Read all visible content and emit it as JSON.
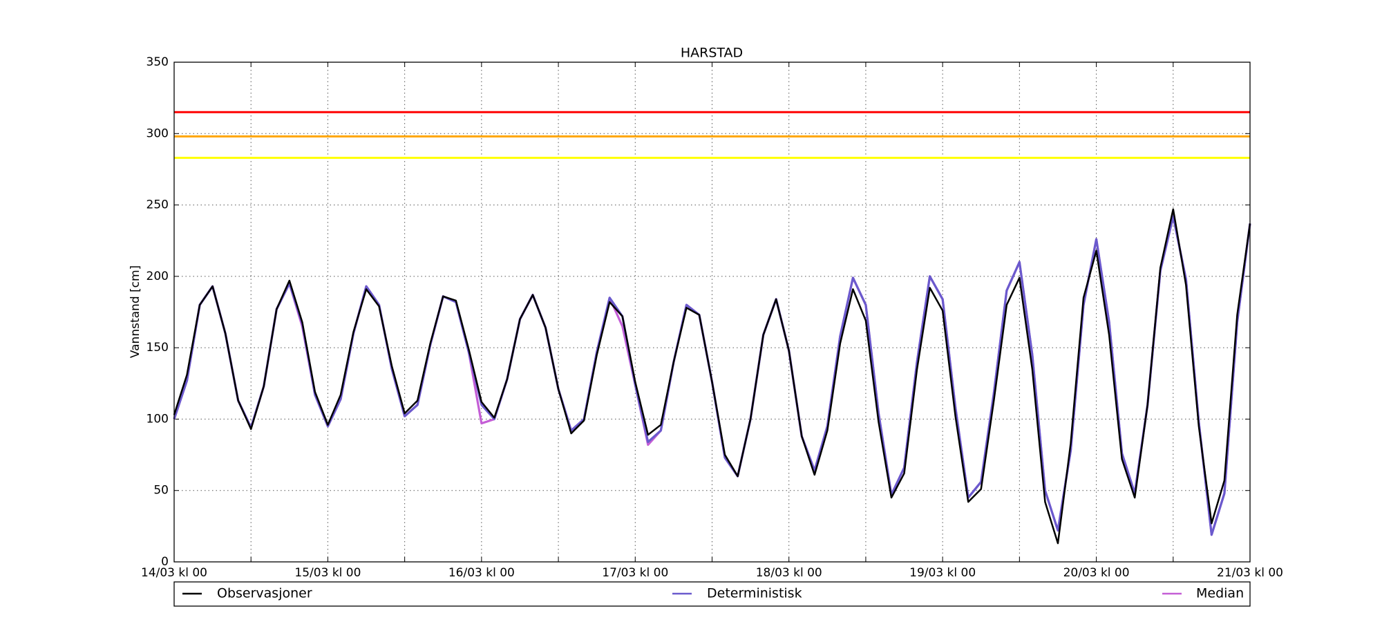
{
  "chart_data": {
    "type": "line",
    "title": "HARSTAD",
    "y_label": "Vannstand [cm]",
    "x": [
      0,
      2,
      4,
      6,
      8,
      10,
      12,
      14,
      16,
      18,
      20,
      22,
      24,
      26,
      28,
      30,
      32,
      34,
      36,
      38,
      40,
      42,
      44,
      46,
      48,
      50,
      52,
      54,
      56,
      58,
      60,
      62,
      64,
      66,
      68,
      70,
      72,
      74,
      76,
      78,
      80,
      82,
      84,
      86,
      88,
      90,
      92,
      94,
      96,
      98,
      100,
      102,
      104,
      106,
      108,
      110,
      112,
      114,
      116,
      118,
      120,
      122,
      124,
      126,
      128,
      130,
      132,
      134,
      136,
      138,
      140,
      142,
      144,
      146,
      148,
      150,
      152,
      154,
      156,
      158,
      160,
      162,
      164,
      166,
      168
    ],
    "series": [
      {
        "name": "Observasjoner",
        "color": "#000000",
        "values": [
          103,
          131,
          180,
          193,
          160,
          113,
          93,
          123,
          177,
          197,
          168,
          119,
          96,
          117,
          161,
          191,
          179,
          137,
          104,
          113,
          153,
          186,
          183,
          149,
          112,
          101,
          128,
          170,
          187,
          164,
          121,
          90,
          99,
          145,
          182,
          172,
          126,
          89,
          96,
          140,
          178,
          173,
          126,
          75,
          60,
          100,
          159,
          184,
          148,
          88,
          61,
          92,
          153,
          191,
          169,
          98,
          45,
          62,
          135,
          192,
          176,
          102,
          42,
          51,
          113,
          180,
          199,
          135,
          42,
          13,
          83,
          185,
          218,
          159,
          72,
          45,
          110,
          206,
          247,
          194,
          95,
          27,
          57,
          173,
          237
        ]
      },
      {
        "name": "Deterministisk",
        "color": "#6a5acd",
        "values": [
          100,
          127,
          180,
          193,
          160,
          113,
          94,
          123,
          177,
          195,
          167,
          117,
          95,
          114,
          160,
          193,
          180,
          135,
          102,
          110,
          152,
          186,
          182,
          147,
          110,
          100,
          128,
          170,
          187,
          164,
          121,
          92,
          100,
          147,
          185,
          172,
          124,
          84,
          92,
          140,
          180,
          173,
          126,
          73,
          60,
          100,
          159,
          184,
          148,
          88,
          64,
          95,
          158,
          199,
          180,
          104,
          47,
          66,
          140,
          200,
          184,
          108,
          45,
          56,
          118,
          190,
          210,
          145,
          50,
          22,
          78,
          180,
          226,
          168,
          76,
          48,
          110,
          204,
          242,
          198,
          98,
          19,
          48,
          168,
          237
        ]
      },
      {
        "name": "Median",
        "color": "#c45ed6",
        "values": [
          100,
          127,
          180,
          193,
          160,
          113,
          94,
          123,
          177,
          195,
          165,
          117,
          95,
          114,
          160,
          193,
          180,
          135,
          102,
          110,
          152,
          186,
          182,
          147,
          97,
          100,
          128,
          170,
          187,
          164,
          121,
          92,
          100,
          147,
          185,
          165,
          124,
          82,
          92,
          140,
          180,
          173,
          126,
          73,
          60,
          100,
          159,
          184,
          148,
          88,
          64,
          95,
          158,
          199,
          180,
          104,
          47,
          66,
          140,
          200,
          184,
          108,
          45,
          56,
          118,
          190,
          210,
          145,
          50,
          22,
          78,
          180,
          226,
          168,
          76,
          48,
          110,
          204,
          242,
          198,
          98,
          19,
          48,
          168,
          237
        ]
      }
    ],
    "thresholds": [
      {
        "value": 315,
        "color": "#ff0000"
      },
      {
        "value": 298,
        "color": "#ffa500"
      },
      {
        "value": 283,
        "color": "#ffff00"
      }
    ],
    "xlim": [
      0,
      168
    ],
    "xticks": [
      {
        "value": 0,
        "label": "14/03 kl 00"
      },
      {
        "value": 24,
        "label": "15/03 kl 00"
      },
      {
        "value": 48,
        "label": "16/03 kl 00"
      },
      {
        "value": 72,
        "label": "17/03 kl 00"
      },
      {
        "value": 96,
        "label": "18/03 kl 00"
      },
      {
        "value": 120,
        "label": "19/03 kl 00"
      },
      {
        "value": 144,
        "label": "20/03 kl 00"
      },
      {
        "value": 168,
        "label": "21/03 kl 00"
      }
    ],
    "minor_xticks": [
      12,
      36,
      60,
      84,
      108,
      132,
      156
    ],
    "ylim": [
      0,
      350
    ],
    "yticks": [
      0,
      50,
      100,
      150,
      200,
      250,
      300,
      350
    ],
    "grid": true
  }
}
